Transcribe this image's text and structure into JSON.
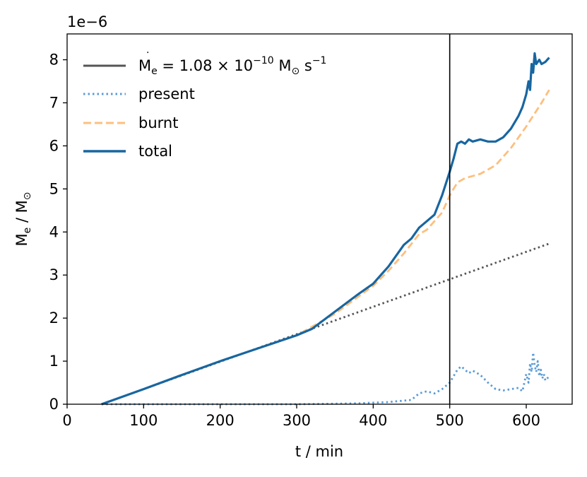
{
  "chart_data": {
    "type": "line",
    "multiplier_label": "1e−6",
    "xlabel": "t / min",
    "ylabel_main": "M",
    "ylabel_sub": "e",
    "ylabel_sep": " / M",
    "ylabel_sun": "⊙",
    "xlim": [
      0,
      660
    ],
    "ylim": [
      0,
      8.6
    ],
    "xticks": [
      0,
      100,
      200,
      300,
      400,
      500,
      600
    ],
    "yticks": [
      0,
      1,
      2,
      3,
      4,
      5,
      6,
      7,
      8
    ],
    "vline_x": 500,
    "colors": {
      "reference": "#555555",
      "present": "#5b9bd5",
      "burnt": "#fdbf7e",
      "total": "#1866a0"
    },
    "legend_location": "upper-left",
    "legend": {
      "reference": {
        "lhs": "M",
        "lhs_sub": "e",
        "eq": " = 1.08 × 10",
        "exp": "−10",
        "unit": " M",
        "unit_sub": "⊙",
        "unit_rest": " s",
        "unit_exp": "−1"
      },
      "present": "present",
      "burnt": "burnt",
      "total": "total"
    },
    "series": [
      {
        "name": "reference",
        "style": "dotted",
        "x": [
          45,
          630
        ],
        "y": [
          0.0,
          3.73
        ]
      },
      {
        "name": "present",
        "style": "dotted",
        "x": [
          45,
          100,
          200,
          300,
          380,
          420,
          450,
          460,
          470,
          480,
          490,
          500,
          505,
          510,
          515,
          520,
          525,
          530,
          540,
          550,
          560,
          570,
          580,
          590,
          595,
          600,
          603,
          605,
          607,
          609,
          611,
          613,
          615,
          617,
          619,
          621,
          623,
          625,
          630
        ],
        "y": [
          0.0,
          0.0,
          0.0,
          0.0,
          0.02,
          0.05,
          0.1,
          0.25,
          0.3,
          0.25,
          0.35,
          0.5,
          0.65,
          0.8,
          0.88,
          0.8,
          0.72,
          0.78,
          0.68,
          0.5,
          0.35,
          0.32,
          0.35,
          0.38,
          0.3,
          0.7,
          0.5,
          0.95,
          0.75,
          1.2,
          0.9,
          0.75,
          1.0,
          0.65,
          0.8,
          0.6,
          0.7,
          0.55,
          0.65
        ]
      },
      {
        "name": "burnt",
        "style": "dashed",
        "x": [
          45,
          100,
          150,
          200,
          250,
          300,
          350,
          400,
          420,
          440,
          460,
          470,
          480,
          490,
          500,
          510,
          520,
          540,
          560,
          580,
          600,
          620,
          630
        ],
        "y": [
          0.0,
          0.35,
          0.68,
          1.0,
          1.3,
          1.6,
          2.1,
          2.75,
          3.1,
          3.5,
          3.95,
          4.05,
          4.25,
          4.45,
          4.85,
          5.15,
          5.25,
          5.35,
          5.55,
          5.95,
          6.45,
          7.0,
          7.3
        ]
      },
      {
        "name": "total",
        "style": "solid",
        "x": [
          45,
          100,
          150,
          200,
          250,
          300,
          320,
          350,
          380,
          400,
          410,
          420,
          430,
          440,
          450,
          460,
          470,
          480,
          490,
          500,
          505,
          510,
          515,
          520,
          525,
          530,
          540,
          550,
          560,
          570,
          580,
          590,
          595,
          600,
          603,
          605,
          607,
          609,
          611,
          613,
          615,
          617,
          620,
          625,
          630
        ],
        "y": [
          0.0,
          0.35,
          0.68,
          1.0,
          1.3,
          1.6,
          1.75,
          2.15,
          2.55,
          2.8,
          3.0,
          3.2,
          3.45,
          3.7,
          3.85,
          4.1,
          4.25,
          4.4,
          4.85,
          5.4,
          5.7,
          6.05,
          6.1,
          6.05,
          6.15,
          6.1,
          6.15,
          6.1,
          6.1,
          6.2,
          6.4,
          6.7,
          6.9,
          7.2,
          7.5,
          7.3,
          7.9,
          7.7,
          8.15,
          7.9,
          7.95,
          8.0,
          7.9,
          7.95,
          8.05
        ]
      }
    ]
  }
}
